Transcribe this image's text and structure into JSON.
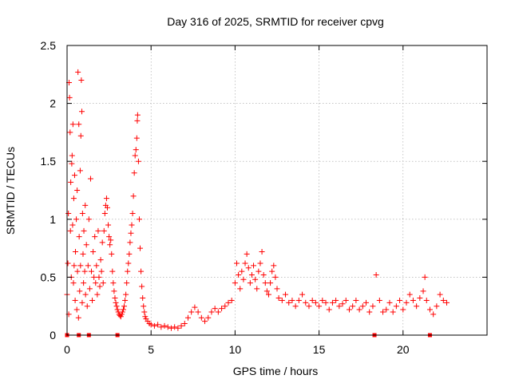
{
  "chart_data": {
    "type": "scatter",
    "title": "Day 316 of 2025, SRMTID for receiver cpvg",
    "xlabel": "GPS time / hours",
    "ylabel": "SRMTID / TECUs",
    "xlim": [
      0,
      25
    ],
    "ylim": [
      0,
      2.5
    ],
    "xticks": [
      0,
      5,
      10,
      15,
      20
    ],
    "yticks": [
      0,
      0.5,
      1,
      1.5,
      2,
      2.5
    ],
    "xtick_labels": [
      "0",
      "5",
      "10",
      "15",
      "20"
    ],
    "ytick_labels": [
      "0",
      "0.5",
      "1",
      "1.5",
      "2",
      "2.5"
    ],
    "grid": true,
    "marker": "+",
    "series": [
      {
        "name": "SRMTID",
        "color": "#ff0000",
        "points": [
          [
            0.0,
            0.35
          ],
          [
            0.05,
            0.62
          ],
          [
            0.08,
            1.05
          ],
          [
            0.1,
            0.18
          ],
          [
            0.12,
            2.18
          ],
          [
            0.15,
            2.05
          ],
          [
            0.18,
            1.75
          ],
          [
            0.2,
            0.9
          ],
          [
            0.22,
            1.32
          ],
          [
            0.25,
            0.5
          ],
          [
            0.28,
            1.48
          ],
          [
            0.3,
            1.55
          ],
          [
            0.33,
            0.95
          ],
          [
            0.35,
            1.82
          ],
          [
            0.38,
            0.45
          ],
          [
            0.4,
            1.18
          ],
          [
            0.42,
            0.6
          ],
          [
            0.45,
            1.38
          ],
          [
            0.48,
            0.3
          ],
          [
            0.5,
            0.72
          ],
          [
            0.55,
            1.0
          ],
          [
            0.58,
            0.22
          ],
          [
            0.6,
            1.25
          ],
          [
            0.62,
            0.55
          ],
          [
            0.65,
            2.27
          ],
          [
            0.68,
            0.15
          ],
          [
            0.7,
            1.82
          ],
          [
            0.72,
            0.85
          ],
          [
            0.75,
            0.38
          ],
          [
            0.78,
            1.42
          ],
          [
            0.8,
            0.6
          ],
          [
            0.82,
            1.72
          ],
          [
            0.85,
            2.2
          ],
          [
            0.88,
            1.93
          ],
          [
            0.9,
            0.28
          ],
          [
            0.92,
            1.05
          ],
          [
            0.95,
            0.7
          ],
          [
            0.98,
            0.45
          ],
          [
            1.0,
            0.9
          ],
          [
            1.05,
            0.55
          ],
          [
            1.08,
            1.12
          ],
          [
            1.1,
            0.35
          ],
          [
            1.15,
            0.78
          ],
          [
            1.2,
            0.25
          ],
          [
            1.25,
            0.6
          ],
          [
            1.3,
            1.0
          ],
          [
            1.35,
            0.4
          ],
          [
            1.4,
            1.35
          ],
          [
            1.45,
            0.55
          ],
          [
            1.5,
            0.3
          ],
          [
            1.55,
            0.72
          ],
          [
            1.6,
            0.5
          ],
          [
            1.65,
            0.85
          ],
          [
            1.7,
            0.45
          ],
          [
            1.75,
            0.6
          ],
          [
            1.8,
            0.35
          ],
          [
            1.85,
            0.9
          ],
          [
            1.9,
            0.5
          ],
          [
            1.95,
            0.42
          ],
          [
            2.0,
            0.65
          ],
          [
            2.05,
            0.55
          ],
          [
            2.1,
            0.8
          ],
          [
            2.15,
            0.45
          ],
          [
            2.2,
            0.9
          ],
          [
            2.25,
            1.05
          ],
          [
            2.3,
            1.12
          ],
          [
            2.35,
            1.18
          ],
          [
            2.4,
            1.1
          ],
          [
            2.45,
            0.95
          ],
          [
            2.5,
            0.85
          ],
          [
            2.55,
            0.78
          ],
          [
            2.6,
            0.82
          ],
          [
            2.65,
            0.7
          ],
          [
            2.7,
            0.55
          ],
          [
            2.75,
            0.45
          ],
          [
            2.8,
            0.38
          ],
          [
            2.85,
            0.32
          ],
          [
            2.9,
            0.28
          ],
          [
            2.95,
            0.25
          ],
          [
            3.0,
            0.22
          ],
          [
            3.05,
            0.2
          ],
          [
            3.1,
            0.18
          ],
          [
            3.15,
            0.17
          ],
          [
            3.2,
            0.16
          ],
          [
            3.25,
            0.18
          ],
          [
            3.3,
            0.2
          ],
          [
            3.35,
            0.22
          ],
          [
            3.4,
            0.25
          ],
          [
            3.45,
            0.3
          ],
          [
            3.5,
            0.35
          ],
          [
            3.55,
            0.45
          ],
          [
            3.6,
            0.55
          ],
          [
            3.65,
            0.62
          ],
          [
            3.7,
            0.7
          ],
          [
            3.75,
            0.8
          ],
          [
            3.8,
            0.88
          ],
          [
            3.85,
            0.95
          ],
          [
            3.9,
            1.05
          ],
          [
            3.95,
            1.2
          ],
          [
            4.0,
            1.4
          ],
          [
            4.05,
            1.55
          ],
          [
            4.1,
            1.6
          ],
          [
            4.15,
            1.7
          ],
          [
            4.18,
            1.85
          ],
          [
            4.2,
            1.9
          ],
          [
            4.25,
            1.5
          ],
          [
            4.3,
            1.0
          ],
          [
            4.35,
            0.75
          ],
          [
            4.4,
            0.55
          ],
          [
            4.45,
            0.42
          ],
          [
            4.5,
            0.32
          ],
          [
            4.55,
            0.25
          ],
          [
            4.6,
            0.2
          ],
          [
            4.65,
            0.16
          ],
          [
            4.7,
            0.14
          ],
          [
            4.8,
            0.12
          ],
          [
            4.9,
            0.1
          ],
          [
            5.0,
            0.09
          ],
          [
            5.2,
            0.08
          ],
          [
            5.4,
            0.09
          ],
          [
            5.6,
            0.07
          ],
          [
            5.8,
            0.08
          ],
          [
            6.0,
            0.07
          ],
          [
            6.2,
            0.06
          ],
          [
            6.4,
            0.07
          ],
          [
            6.6,
            0.06
          ],
          [
            6.8,
            0.08
          ],
          [
            7.0,
            0.1
          ],
          [
            7.2,
            0.15
          ],
          [
            7.4,
            0.2
          ],
          [
            7.6,
            0.24
          ],
          [
            7.8,
            0.2
          ],
          [
            8.0,
            0.15
          ],
          [
            8.2,
            0.12
          ],
          [
            8.4,
            0.15
          ],
          [
            8.6,
            0.2
          ],
          [
            8.8,
            0.23
          ],
          [
            9.0,
            0.2
          ],
          [
            9.2,
            0.23
          ],
          [
            9.4,
            0.25
          ],
          [
            9.6,
            0.28
          ],
          [
            9.8,
            0.3
          ],
          [
            10.0,
            0.45
          ],
          [
            10.1,
            0.62
          ],
          [
            10.2,
            0.52
          ],
          [
            10.3,
            0.4
          ],
          [
            10.4,
            0.55
          ],
          [
            10.5,
            0.48
          ],
          [
            10.6,
            0.62
          ],
          [
            10.7,
            0.7
          ],
          [
            10.8,
            0.58
          ],
          [
            10.9,
            0.45
          ],
          [
            11.0,
            0.52
          ],
          [
            11.1,
            0.6
          ],
          [
            11.2,
            0.48
          ],
          [
            11.3,
            0.4
          ],
          [
            11.4,
            0.55
          ],
          [
            11.5,
            0.62
          ],
          [
            11.6,
            0.72
          ],
          [
            11.7,
            0.52
          ],
          [
            11.8,
            0.45
          ],
          [
            11.9,
            0.38
          ],
          [
            12.0,
            0.35
          ],
          [
            12.1,
            0.45
          ],
          [
            12.2,
            0.55
          ],
          [
            12.3,
            0.6
          ],
          [
            12.4,
            0.5
          ],
          [
            12.5,
            0.4
          ],
          [
            12.6,
            0.32
          ],
          [
            12.8,
            0.3
          ],
          [
            13.0,
            0.35
          ],
          [
            13.2,
            0.28
          ],
          [
            13.4,
            0.3
          ],
          [
            13.6,
            0.25
          ],
          [
            13.8,
            0.3
          ],
          [
            14.0,
            0.35
          ],
          [
            14.2,
            0.28
          ],
          [
            14.4,
            0.25
          ],
          [
            14.6,
            0.3
          ],
          [
            14.8,
            0.28
          ],
          [
            15.0,
            0.25
          ],
          [
            15.2,
            0.3
          ],
          [
            15.4,
            0.28
          ],
          [
            15.6,
            0.22
          ],
          [
            15.8,
            0.28
          ],
          [
            16.0,
            0.3
          ],
          [
            16.2,
            0.25
          ],
          [
            16.4,
            0.27
          ],
          [
            16.6,
            0.3
          ],
          [
            16.8,
            0.22
          ],
          [
            17.0,
            0.25
          ],
          [
            17.2,
            0.3
          ],
          [
            17.4,
            0.22
          ],
          [
            17.6,
            0.25
          ],
          [
            17.8,
            0.28
          ],
          [
            18.0,
            0.2
          ],
          [
            18.2,
            0.25
          ],
          [
            18.4,
            0.52
          ],
          [
            18.6,
            0.3
          ],
          [
            18.8,
            0.2
          ],
          [
            19.0,
            0.22
          ],
          [
            19.2,
            0.28
          ],
          [
            19.4,
            0.2
          ],
          [
            19.6,
            0.25
          ],
          [
            19.8,
            0.3
          ],
          [
            20.0,
            0.22
          ],
          [
            20.2,
            0.28
          ],
          [
            20.4,
            0.35
          ],
          [
            20.6,
            0.3
          ],
          [
            20.8,
            0.25
          ],
          [
            21.0,
            0.32
          ],
          [
            21.2,
            0.38
          ],
          [
            21.3,
            0.5
          ],
          [
            21.4,
            0.3
          ],
          [
            21.6,
            0.22
          ],
          [
            21.8,
            0.18
          ],
          [
            22.0,
            0.25
          ],
          [
            22.2,
            0.35
          ],
          [
            22.4,
            0.3
          ],
          [
            22.6,
            0.28
          ]
        ]
      }
    ],
    "zero_markers": [
      0.0,
      0.7,
      1.3,
      3.0,
      18.3,
      21.6
    ]
  }
}
